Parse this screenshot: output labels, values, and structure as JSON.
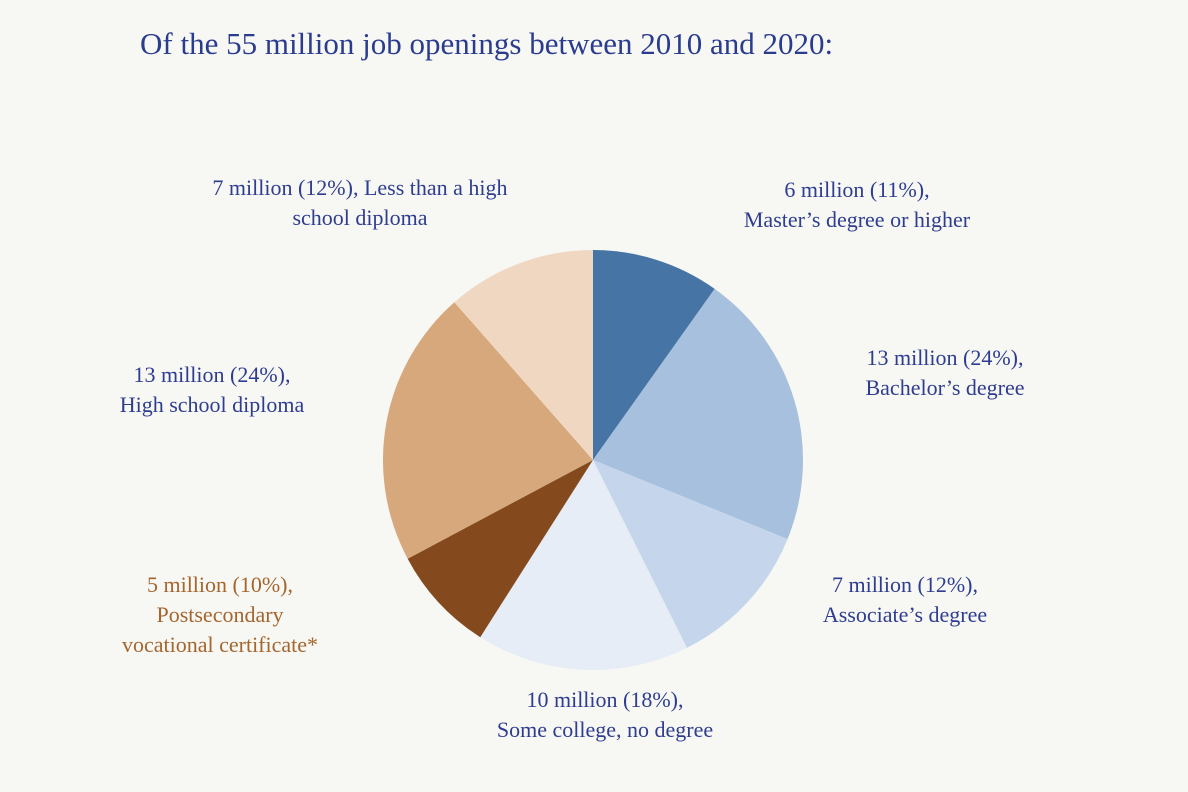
{
  "chart_data": {
    "type": "pie",
    "title": "Of the 55 million job openings between 2010 and 2020:",
    "categories": [
      "Master’s degree or higher",
      "Bachelor’s degree",
      "Associate’s degree",
      "Some college, no degree",
      "Postsecondary vocational certificate*",
      "High school diploma",
      "Less than a high school diploma"
    ],
    "values": [
      6,
      13,
      7,
      10,
      5,
      13,
      7
    ],
    "value_labels": [
      "6 million (11%),",
      "13 million (24%),",
      "7 million (12%),",
      "10 million (18%),",
      "5 million (10%),",
      "13 million (24%),",
      "7 million (12%),"
    ],
    "colors": [
      "#4674a5",
      "#a7c0de",
      "#c5d6ec",
      "#e6edf7",
      "#844a1e",
      "#d6a87b",
      "#f0d7c1"
    ],
    "label_colors": [
      "#2e3d8f",
      "#2e3d8f",
      "#2e3d8f",
      "#2e3d8f",
      "#a5662e",
      "#2e3d8f",
      "#2e3d8f"
    ]
  }
}
